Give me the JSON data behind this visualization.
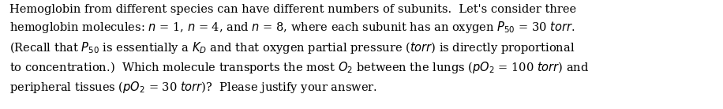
{
  "background_color": "#ffffff",
  "text_color": "#000000",
  "figsize": [
    9.16,
    1.38
  ],
  "dpi": 100,
  "font_size": 10.5,
  "line1": "Hemoglobin from different species can have different numbers of subunits.  Let’s consider three",
  "line2_parts": [
    {
      "text": "hemoglobin molecules: ",
      "style": "normal"
    },
    {
      "text": "n",
      "style": "italic"
    },
    {
      "text": " = 1, ",
      "style": "normal"
    },
    {
      "text": "n",
      "style": "italic"
    },
    {
      "text": " = 4, and ",
      "style": "normal"
    },
    {
      "text": "n",
      "style": "italic"
    },
    {
      "text": " = 8, where each subunit has an oxygen ",
      "style": "normal"
    },
    {
      "text": "P",
      "style": "italic"
    },
    {
      "text": "50",
      "style": "sub"
    },
    {
      "text": " = 30 ",
      "style": "normal"
    },
    {
      "text": "torr",
      "style": "italic"
    },
    {
      "text": ".",
      "style": "normal"
    }
  ],
  "line3_parts": [
    {
      "text": "(Recall that ",
      "style": "normal"
    },
    {
      "text": "P",
      "style": "italic"
    },
    {
      "text": "50",
      "style": "sub"
    },
    {
      "text": " is essentially a ",
      "style": "normal"
    },
    {
      "text": "K",
      "style": "italic"
    },
    {
      "text": "D",
      "style": "sub"
    },
    {
      "text": " and that oxygen partial pressure (",
      "style": "normal"
    },
    {
      "text": "torr",
      "style": "italic"
    },
    {
      "text": ") is directly proportional",
      "style": "normal"
    }
  ],
  "line4_parts": [
    {
      "text": "to concentration.)  Which molecule transports the most ",
      "style": "normal"
    },
    {
      "text": "O",
      "style": "italic"
    },
    {
      "text": "2",
      "style": "sub"
    },
    {
      "text": " between the lungs (",
      "style": "normal"
    },
    {
      "text": "pO",
      "style": "italic"
    },
    {
      "text": "2",
      "style": "sub"
    },
    {
      "text": " = 100 ",
      "style": "normal"
    },
    {
      "text": "torr",
      "style": "italic"
    },
    {
      "text": ") and",
      "style": "normal"
    }
  ],
  "line5_parts": [
    {
      "text": "peripheral tissues (",
      "style": "normal"
    },
    {
      "text": "pO",
      "style": "italic"
    },
    {
      "text": "2",
      "style": "sub"
    },
    {
      "text": " = 30 ",
      "style": "normal"
    },
    {
      "text": "torr",
      "style": "italic"
    },
    {
      "text": ")?  Please justify your answer.",
      "style": "normal"
    }
  ]
}
